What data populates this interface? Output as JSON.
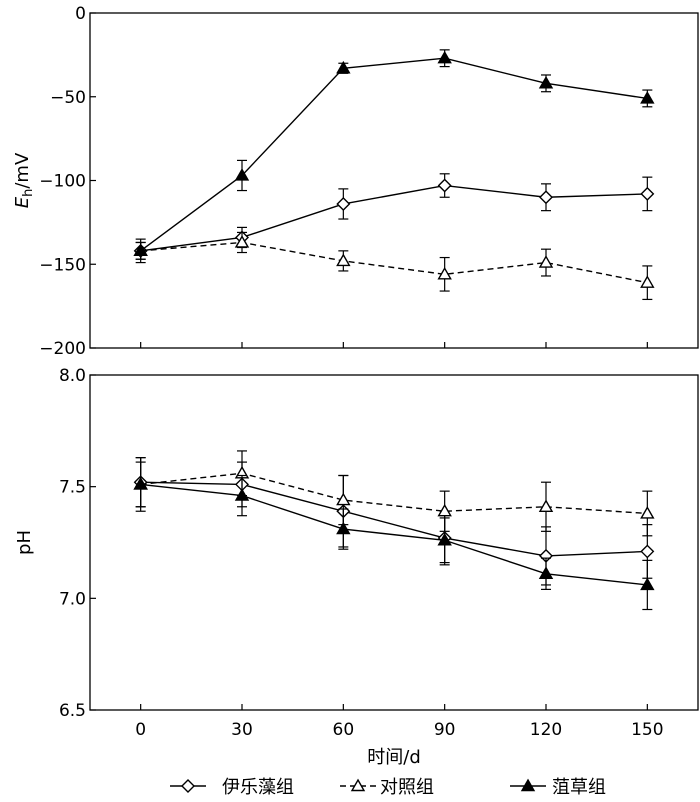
{
  "chart_data": [
    {
      "type": "line",
      "ylabel": "Eh/mV",
      "ylabel_main": "E",
      "ylabel_sub": "h",
      "ylabel_unit": "/mV",
      "ylim": [
        -200,
        0
      ],
      "yticks": [
        0,
        -50,
        -100,
        -150,
        -200
      ],
      "ytick_labels": [
        "0",
        "−50",
        "−100",
        "−150",
        "−200"
      ],
      "x": [
        0,
        30,
        60,
        90,
        120,
        150
      ],
      "xlim": [
        -15,
        165
      ],
      "show_xtick_labels": false,
      "grid": false,
      "series": [
        {
          "name": "伊乐藻组",
          "marker": "diamond-open",
          "line": "solid",
          "values": [
            -142,
            -134,
            -114,
            -103,
            -110,
            -108
          ],
          "errors": [
            5,
            6,
            9,
            7,
            8,
            10
          ]
        },
        {
          "name": "对照组",
          "marker": "triangle-open",
          "line": "dashed",
          "values": [
            -142,
            -137,
            -148,
            -156,
            -149,
            -161
          ],
          "errors": [
            5,
            6,
            6,
            10,
            8,
            10
          ]
        },
        {
          "name": "菹草组",
          "marker": "triangle-filled",
          "line": "solid",
          "values": [
            -142,
            -97,
            -33,
            -27,
            -42,
            -51
          ],
          "errors": [
            7,
            9,
            3,
            5,
            5,
            5
          ]
        }
      ]
    },
    {
      "type": "line",
      "ylabel": "pH",
      "ylim": [
        6.5,
        8.0
      ],
      "yticks": [
        8.0,
        7.5,
        7.0,
        6.5
      ],
      "ytick_labels": [
        "8.0",
        "7.5",
        "7.0",
        "6.5"
      ],
      "x": [
        0,
        30,
        60,
        90,
        120,
        150
      ],
      "xticks": [
        0,
        30,
        60,
        90,
        120,
        150
      ],
      "xtick_labels": [
        "0",
        "30",
        "60",
        "90",
        "120",
        "150"
      ],
      "xlim": [
        -15,
        165
      ],
      "show_xtick_labels": true,
      "xlabel": "时间/d",
      "grid": false,
      "series": [
        {
          "name": "伊乐藻组",
          "marker": "diamond-open",
          "line": "solid",
          "values": [
            7.52,
            7.51,
            7.39,
            7.27,
            7.19,
            7.21
          ],
          "errors": [
            0.11,
            0.1,
            0.16,
            0.12,
            0.13,
            0.12
          ]
        },
        {
          "name": "对照组",
          "marker": "triangle-open",
          "line": "dashed",
          "values": [
            7.51,
            7.56,
            7.44,
            7.39,
            7.41,
            7.38
          ],
          "errors": [
            0.12,
            0.1,
            0.11,
            0.09,
            0.11,
            0.1
          ]
        },
        {
          "name": "菹草组",
          "marker": "triangle-filled",
          "line": "solid",
          "values": [
            7.51,
            7.46,
            7.31,
            7.26,
            7.11,
            7.06
          ],
          "errors": [
            0.1,
            0.09,
            0.09,
            0.1,
            0.07,
            0.11
          ]
        }
      ]
    }
  ],
  "legend": {
    "placement": "bottom",
    "items": [
      {
        "label": "伊乐藻组",
        "marker": "diamond-open",
        "line": "solid"
      },
      {
        "label": "对照组",
        "marker": "triangle-open",
        "line": "dashed"
      },
      {
        "label": "菹草组",
        "marker": "triangle-filled",
        "line": "solid"
      }
    ]
  }
}
